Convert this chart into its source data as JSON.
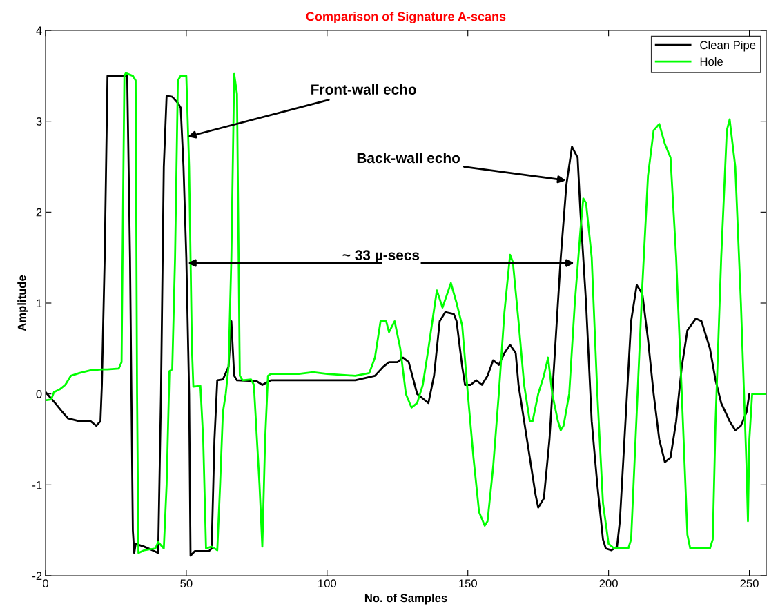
{
  "chart_data": {
    "type": "line",
    "title": "Comparison of Signature A-scans",
    "xlabel": "No. of Samples",
    "ylabel": "Amplitude",
    "xlim": [
      0,
      256
    ],
    "ylim": [
      -2,
      4
    ],
    "xticks": [
      0,
      50,
      100,
      150,
      200,
      250
    ],
    "yticks": [
      -2,
      -1,
      0,
      1,
      2,
      3,
      4
    ],
    "grid": false,
    "legend": "top right",
    "series": [
      {
        "name": "Clean Pipe",
        "color": "#000000",
        "x": [
          0,
          3.4,
          6,
          8,
          12,
          16,
          18,
          19.5,
          20,
          21,
          22,
          28,
          29,
          30,
          31,
          31.5,
          32,
          35,
          38,
          40,
          41,
          42,
          43,
          45,
          47,
          48,
          49,
          50,
          51,
          51.5,
          53,
          58,
          59,
          60,
          61,
          63,
          65,
          66,
          67,
          68,
          75,
          77,
          80,
          100,
          110,
          117,
          120,
          122,
          125,
          127,
          129,
          132,
          134,
          136,
          138,
          140,
          142,
          145,
          146,
          148,
          149,
          151,
          153,
          155,
          157,
          159,
          161,
          163,
          165,
          167,
          168,
          170,
          172,
          174,
          175,
          177,
          179,
          181,
          183,
          185,
          187,
          189,
          190,
          192,
          194,
          196,
          198,
          199,
          201,
          203,
          204,
          206,
          208,
          210,
          212,
          214,
          216,
          218,
          220,
          222,
          224,
          226,
          228,
          231,
          233,
          236,
          238,
          240,
          243,
          245,
          247,
          249,
          250
        ],
        "values": [
          0.02,
          -0.1,
          -0.2,
          -0.27,
          -0.3,
          -0.3,
          -0.35,
          -0.3,
          0.1,
          1.5,
          3.5,
          3.5,
          3.5,
          1.5,
          -1.5,
          -1.75,
          -1.65,
          -1.68,
          -1.72,
          -1.75,
          0,
          2.5,
          3.28,
          3.27,
          3.2,
          3.15,
          2.5,
          1.5,
          0,
          -1.78,
          -1.73,
          -1.73,
          -1.7,
          -0.5,
          0.15,
          0.16,
          0.3,
          0.8,
          0.2,
          0.15,
          0.14,
          0.1,
          0.15,
          0.15,
          0.15,
          0.2,
          0.3,
          0.35,
          0.35,
          0.4,
          0.35,
          0,
          -0.05,
          -0.1,
          0.2,
          0.8,
          0.9,
          0.88,
          0.8,
          0.3,
          0.1,
          0.1,
          0.15,
          0.1,
          0.2,
          0.37,
          0.32,
          0.45,
          0.54,
          0.45,
          0.1,
          -0.3,
          -0.7,
          -1.1,
          -1.25,
          -1.15,
          -0.5,
          0.5,
          1.5,
          2.3,
          2.72,
          2.6,
          2,
          1,
          -0.3,
          -1,
          -1.6,
          -1.7,
          -1.72,
          -1.68,
          -1.4,
          -0.3,
          0.8,
          1.2,
          1.1,
          0.6,
          0,
          -0.5,
          -0.75,
          -0.7,
          -0.3,
          0.3,
          0.7,
          0.83,
          0.8,
          0.5,
          0.15,
          -0.1,
          -0.3,
          -0.4,
          -0.35,
          -0.2,
          0
        ]
      },
      {
        "name": "Hole",
        "color": "#00ff00",
        "x": [
          0,
          2,
          3,
          5,
          7,
          9,
          12,
          16,
          20,
          22,
          26,
          27,
          27.5,
          28,
          28.5,
          31,
          32,
          32.5,
          33,
          35,
          39,
          40,
          42,
          43,
          44,
          45,
          46,
          47,
          48,
          50,
          51,
          52,
          52.5,
          55,
          56,
          57,
          59,
          61,
          62,
          63,
          64,
          65,
          66,
          67,
          68,
          69,
          70,
          73,
          74,
          76,
          77,
          78,
          79,
          80,
          90,
          95,
          100,
          110,
          115,
          117,
          119,
          121,
          122,
          124,
          126,
          128,
          130,
          132,
          134,
          136,
          139,
          141,
          144,
          146,
          148,
          150,
          152,
          154,
          156,
          157,
          159,
          161,
          163,
          165,
          166,
          168,
          170,
          172,
          173,
          175,
          177,
          178.5,
          180,
          182,
          183,
          184,
          186,
          188,
          190,
          191,
          192,
          194,
          196,
          198,
          200,
          202,
          207,
          208,
          210,
          212,
          214,
          216,
          218,
          220,
          222,
          224,
          226,
          228,
          229,
          236,
          237,
          238,
          240,
          242,
          243,
          245,
          247,
          249,
          249.5,
          250,
          251,
          256
        ],
        "values": [
          -0.07,
          -0.06,
          0.02,
          0.05,
          0.1,
          0.2,
          0.23,
          0.26,
          0.27,
          0.27,
          0.28,
          0.35,
          2,
          3.5,
          3.53,
          3.5,
          3.45,
          0,
          -1.75,
          -1.72,
          -1.7,
          -1.63,
          -1.7,
          -1,
          0.25,
          0.27,
          1.5,
          3.45,
          3.5,
          3.5,
          2.5,
          0.5,
          0.08,
          0.09,
          -0.5,
          -1.7,
          -1.68,
          -1.72,
          -1,
          -0.2,
          0,
          0.3,
          1.5,
          3.52,
          3.3,
          0.2,
          0.15,
          0.16,
          0.1,
          -1,
          -1.68,
          -0.5,
          0.2,
          0.22,
          0.22,
          0.24,
          0.22,
          0.2,
          0.23,
          0.4,
          0.8,
          0.8,
          0.68,
          0.8,
          0.5,
          0,
          -0.15,
          -0.1,
          0.1,
          0.5,
          1.14,
          0.95,
          1.22,
          1,
          0.75,
          0,
          -0.7,
          -1.3,
          -1.45,
          -1.4,
          -0.8,
          0,
          0.9,
          1.53,
          1.45,
          0.8,
          0.1,
          -0.3,
          -0.3,
          0,
          0.2,
          0.4,
          0,
          -0.3,
          -0.4,
          -0.35,
          0,
          1,
          1.8,
          2.15,
          2.1,
          1.5,
          0,
          -1.2,
          -1.65,
          -1.7,
          -1.7,
          -1.6,
          -0.2,
          1.2,
          2.4,
          2.9,
          2.97,
          2.75,
          2.6,
          1.5,
          0,
          -1.55,
          -1.7,
          -1.7,
          -1.6,
          -0.3,
          1.5,
          2.9,
          3.02,
          2.5,
          1,
          -0.8,
          -1.4,
          -0.5,
          0,
          0
        ]
      }
    ],
    "annotations": [
      {
        "text": "Front-wall echo",
        "x": 50.5,
        "y": 2.83
      },
      {
        "text": "Back-wall echo",
        "x": 184.8,
        "y": 2.35
      },
      {
        "text": "~ 33 µ-secs",
        "x": 187.8,
        "y": 1.44
      }
    ]
  }
}
